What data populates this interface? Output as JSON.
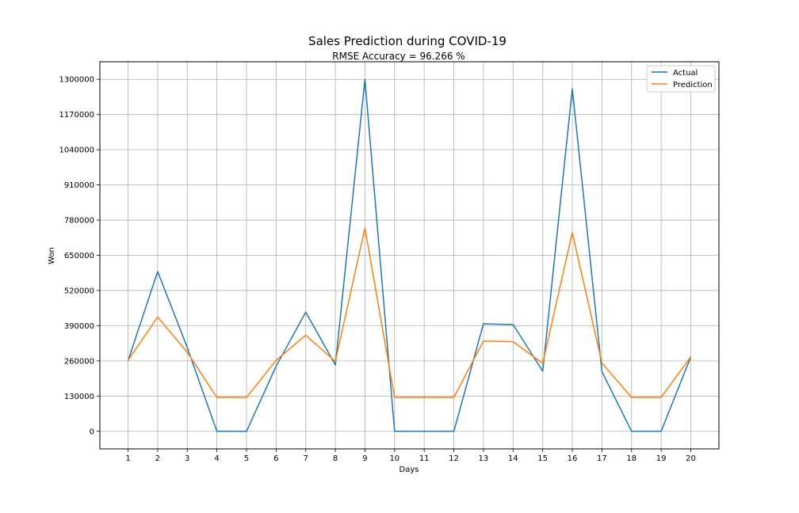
{
  "chart_data": {
    "type": "line",
    "title": "Sales Prediction during COVID-19",
    "subtitle": "RMSE Accuracy = 96.266 %",
    "xlabel": "Days",
    "ylabel": "Won",
    "x": [
      1,
      2,
      3,
      4,
      5,
      6,
      7,
      8,
      9,
      10,
      11,
      12,
      13,
      14,
      15,
      16,
      17,
      18,
      19,
      20
    ],
    "xlim": [
      0.05,
      20.95
    ],
    "ylim": [
      -65000,
      1365000
    ],
    "yticks": [
      0,
      130000,
      260000,
      390000,
      520000,
      650000,
      780000,
      910000,
      1040000,
      1170000,
      1300000
    ],
    "grid": true,
    "legend_position": "top-right",
    "series": [
      {
        "name": "Actual",
        "color": "#1f77b4",
        "values": [
          260000,
          590000,
          310000,
          0,
          0,
          240000,
          440000,
          245000,
          1300000,
          0,
          0,
          0,
          397000,
          394000,
          222000,
          1265000,
          220000,
          0,
          0,
          275000
        ]
      },
      {
        "name": "Prediction",
        "color": "#ff7f0e",
        "values": [
          262000,
          422000,
          292000,
          125000,
          125000,
          262000,
          355000,
          258000,
          750000,
          125000,
          125000,
          125000,
          333000,
          331000,
          251000,
          734000,
          252000,
          125000,
          125000,
          275000
        ]
      }
    ]
  }
}
